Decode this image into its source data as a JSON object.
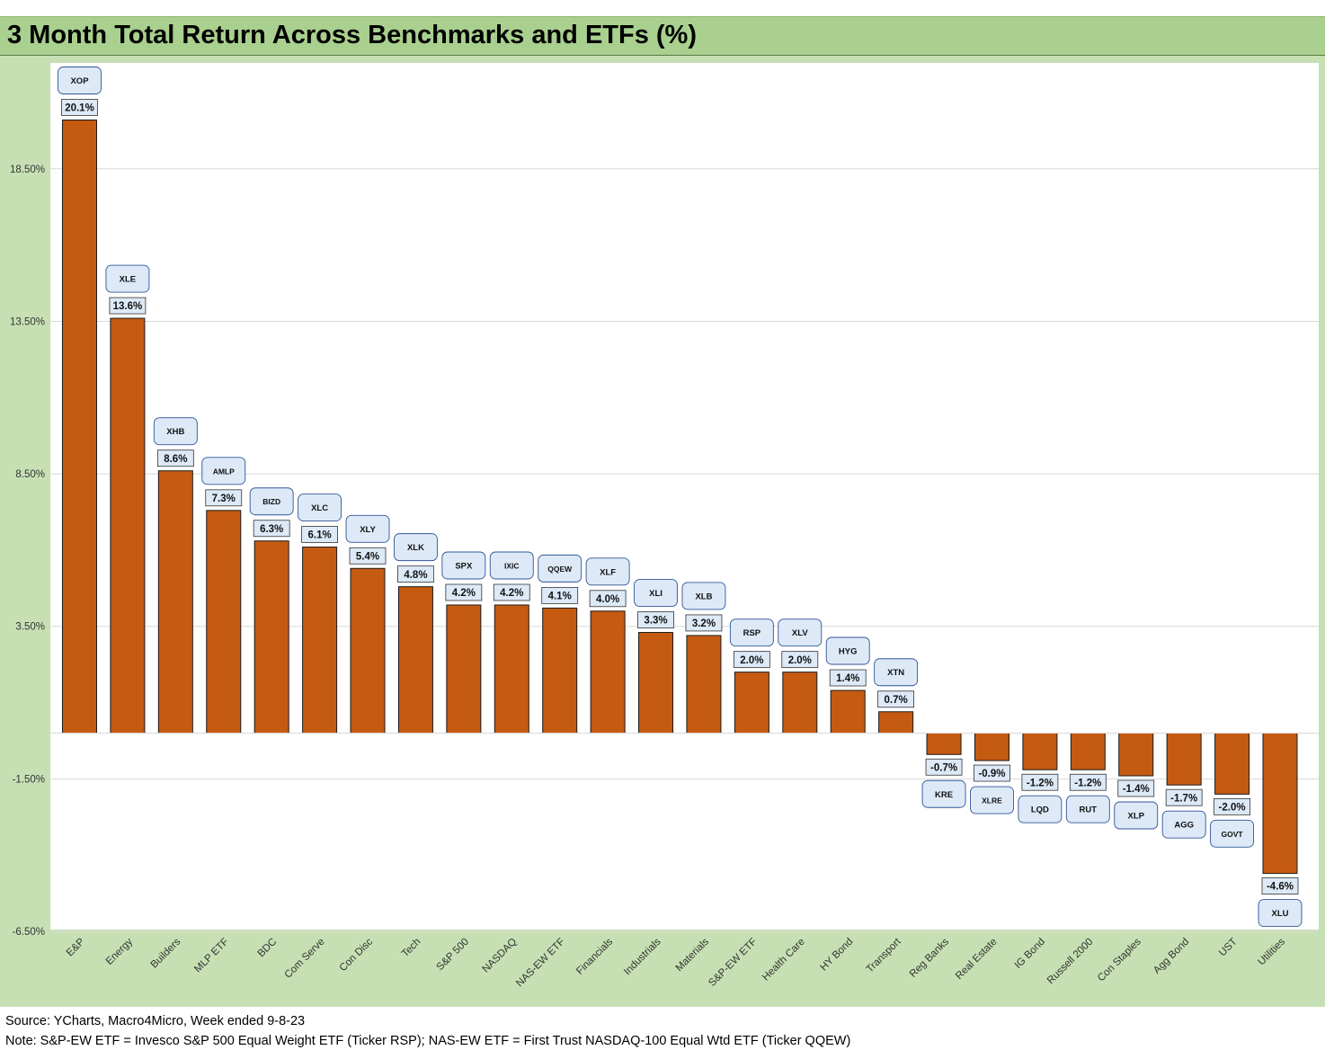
{
  "title": "3 Month Total Return Across Benchmarks and ETFs (%)",
  "footer": {
    "source": "Source: YCharts, Macro4Micro, Week ended 9-8-23",
    "note": "Note: S&P-EW ETF = Invesco S&P 500 Equal Weight ETF (Ticker RSP); NAS-EW ETF = First Trust NASDAQ-100 Equal Wtd ETF (Ticker QQEW)"
  },
  "colors": {
    "bar": "#c55a11",
    "background": "#c6e0b4",
    "plot_area": "#ffffff",
    "title_bar": "#a9d08e",
    "ticker_box": "#dde9f7"
  },
  "chart_data": {
    "type": "bar",
    "title": "3 Month Total Return Across Benchmarks and ETFs (%)",
    "xlabel": "",
    "ylabel": "",
    "ylim": [
      -6.5,
      21.5
    ],
    "y_ticks": [
      18.5,
      13.5,
      8.5,
      3.5,
      -1.5,
      -6.5
    ],
    "y_tick_labels": [
      "18.50%",
      "13.50%",
      "8.50%",
      "3.50%",
      "-1.50%",
      "-6.50%"
    ],
    "grid": true,
    "categories": [
      "E&P",
      "Energy",
      "Builders",
      "MLP ETF",
      "BDC",
      "Com Serve",
      "Con Disc",
      "Tech",
      "S&P 500",
      "NASDAQ",
      "NAS-EW ETF",
      "Financials",
      "Industrials",
      "Materials",
      "S&P-EW ETF",
      "Health Care",
      "HY Bond",
      "Transport",
      "Reg Banks",
      "Real Estate",
      "IG Bond",
      "Russell 2000",
      "Con Staples",
      "Agg Bond",
      "UST",
      "Utilities"
    ],
    "tickers": [
      "XOP",
      "XLE",
      "XHB",
      "AMLP",
      "BIZD",
      "XLC",
      "XLY",
      "XLK",
      "SPX",
      "IXIC",
      "QQEW",
      "XLF",
      "XLI",
      "XLB",
      "RSP",
      "XLV",
      "HYG",
      "XTN",
      "KRE",
      "XLRE",
      "LQD",
      "RUT",
      "XLP",
      "AGG",
      "GOVT",
      "XLU"
    ],
    "values": [
      20.1,
      13.6,
      8.6,
      7.3,
      6.3,
      6.1,
      5.4,
      4.8,
      4.2,
      4.2,
      4.1,
      4.0,
      3.3,
      3.2,
      2.0,
      2.0,
      1.4,
      0.7,
      -0.7,
      -0.9,
      -1.2,
      -1.2,
      -1.4,
      -1.7,
      -2.0,
      -4.6
    ],
    "value_labels": [
      "20.1%",
      "13.6%",
      "8.6%",
      "7.3%",
      "6.3%",
      "6.1%",
      "5.4%",
      "4.8%",
      "4.2%",
      "4.2%",
      "4.1%",
      "4.0%",
      "3.3%",
      "3.2%",
      "2.0%",
      "2.0%",
      "1.4%",
      "0.7%",
      "-0.7%",
      "-0.9%",
      "-1.2%",
      "-1.2%",
      "-1.4%",
      "-1.7%",
      "-2.0%",
      "-4.6%"
    ]
  }
}
